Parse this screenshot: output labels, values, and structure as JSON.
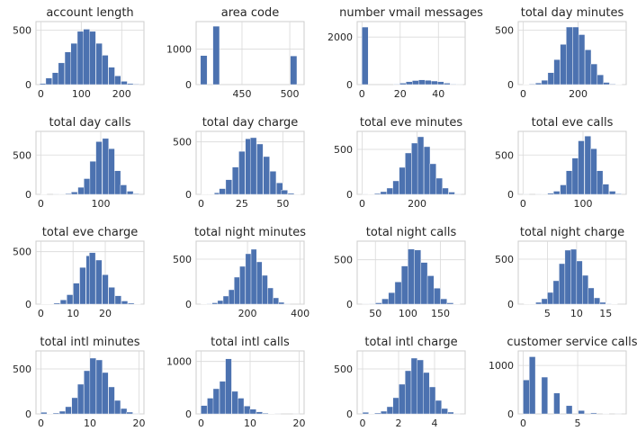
{
  "figure": {
    "bar_color": "#4c72b0",
    "grid": true,
    "layout": "4x4 grid of histograms"
  },
  "chart_data": [
    {
      "type": "bar",
      "title": "account length",
      "x": [
        5,
        20,
        36,
        51,
        67,
        82,
        98,
        113,
        128,
        144,
        159,
        175,
        190,
        206,
        221,
        236
      ],
      "values": [
        10,
        60,
        110,
        200,
        300,
        380,
        490,
        510,
        490,
        380,
        270,
        160,
        80,
        30,
        10,
        5
      ],
      "bin_width": 15.4,
      "xlim": [
        -12,
        255
      ],
      "ylim": [
        0,
        580
      ],
      "xticks": [
        0,
        100,
        200
      ],
      "yticks": [
        0,
        500
      ]
    },
    {
      "type": "bar",
      "title": "area code",
      "x": [
        410,
        423,
        437,
        450,
        463,
        477,
        490,
        504
      ],
      "values": [
        820,
        1650,
        0,
        0,
        0,
        0,
        0,
        810
      ],
      "bin_width": 6.9,
      "xlim": [
        402,
        515
      ],
      "ylim": [
        0,
        1780
      ],
      "xticks": [
        450,
        500
      ],
      "yticks": [
        0,
        1000
      ]
    },
    {
      "type": "bar",
      "title": "number vmail messages",
      "x": [
        1.6,
        4.9,
        8.2,
        11.5,
        14.8,
        18.1,
        21.4,
        24.7,
        28.0,
        31.3,
        34.6,
        37.9,
        41.2,
        44.5,
        47.8,
        51.1
      ],
      "values": [
        2420,
        0,
        0,
        0,
        0,
        20,
        60,
        120,
        170,
        200,
        180,
        150,
        120,
        60,
        20,
        5
      ],
      "bin_width": 3.3,
      "xlim": [
        -2.5,
        54
      ],
      "ylim": [
        0,
        2650
      ],
      "xticks": [
        0,
        20,
        40
      ],
      "yticks": [
        0,
        2000
      ]
    },
    {
      "type": "bar",
      "title": "total day minutes",
      "x": [
        11,
        33,
        56,
        78,
        101,
        123,
        146,
        168,
        191,
        213,
        236,
        258,
        281,
        303,
        326,
        348
      ],
      "values": [
        3,
        5,
        15,
        40,
        110,
        230,
        370,
        530,
        530,
        460,
        320,
        190,
        90,
        20,
        5,
        2
      ],
      "bin_width": 22.5,
      "xlim": [
        -18,
        375
      ],
      "ylim": [
        0,
        580
      ],
      "xticks": [
        0,
        200
      ],
      "yticks": [
        0,
        500
      ]
    },
    {
      "type": "bar",
      "title": "total day calls",
      "x": [
        5,
        15,
        26,
        36,
        46,
        56,
        67,
        77,
        87,
        97,
        108,
        118,
        128,
        138,
        149,
        159
      ],
      "values": [
        3,
        0,
        2,
        5,
        10,
        30,
        90,
        200,
        420,
        670,
        710,
        580,
        300,
        120,
        40,
        8
      ],
      "bin_width": 10.25,
      "xlim": [
        -8,
        172
      ],
      "ylim": [
        0,
        800
      ],
      "xticks": [
        0,
        100
      ],
      "yticks": [
        0,
        500
      ]
    },
    {
      "type": "bar",
      "title": "total day charge",
      "x": [
        2,
        6,
        10,
        13,
        17,
        21,
        25,
        29,
        32,
        36,
        40,
        44,
        48,
        51,
        55,
        59
      ],
      "values": [
        2,
        3,
        15,
        55,
        140,
        260,
        410,
        530,
        540,
        480,
        360,
        220,
        110,
        40,
        10,
        2
      ],
      "bin_width": 3.8,
      "xlim": [
        -3,
        63
      ],
      "ylim": [
        0,
        600
      ],
      "xticks": [
        0,
        25,
        50
      ],
      "yticks": [
        0,
        500
      ]
    },
    {
      "type": "bar",
      "title": "total eve minutes",
      "x": [
        11,
        33,
        56,
        78,
        101,
        123,
        146,
        168,
        191,
        213,
        236,
        258,
        281,
        303,
        326,
        348
      ],
      "values": [
        2,
        3,
        10,
        30,
        70,
        150,
        300,
        460,
        570,
        640,
        530,
        340,
        180,
        70,
        25,
        5
      ],
      "bin_width": 22.5,
      "xlim": [
        -18,
        375
      ],
      "ylim": [
        0,
        700
      ],
      "xticks": [
        0,
        200
      ],
      "yticks": [
        0,
        500
      ]
    },
    {
      "type": "bar",
      "title": "total eve calls",
      "x": [
        5,
        15,
        26,
        36,
        46,
        56,
        67,
        77,
        87,
        97,
        108,
        118,
        128,
        138,
        149,
        159
      ],
      "values": [
        2,
        0,
        2,
        5,
        15,
        40,
        120,
        300,
        460,
        680,
        740,
        580,
        300,
        130,
        40,
        8
      ],
      "bin_width": 10.25,
      "xlim": [
        -8,
        172
      ],
      "ylim": [
        0,
        800
      ],
      "xticks": [
        0,
        100
      ],
      "yticks": [
        0,
        500
      ]
    },
    {
      "type": "bar",
      "title": "total eve charge",
      "x": [
        1,
        3,
        5,
        7,
        9,
        11,
        13,
        15,
        16,
        18,
        20,
        22,
        24,
        26,
        28,
        30
      ],
      "values": [
        2,
        3,
        10,
        40,
        90,
        200,
        350,
        460,
        490,
        420,
        280,
        160,
        80,
        30,
        10,
        2
      ],
      "bin_width": 1.9,
      "xlim": [
        -1.5,
        32
      ],
      "ylim": [
        0,
        600
      ],
      "xticks": [
        0,
        10,
        20
      ],
      "yticks": [
        0,
        500
      ]
    },
    {
      "type": "bar",
      "title": "total night minutes",
      "x": [
        34,
        55,
        76,
        97,
        118,
        139,
        160,
        181,
        203,
        224,
        245,
        266,
        287,
        308,
        329,
        350
      ],
      "values": [
        2,
        5,
        15,
        40,
        90,
        160,
        300,
        420,
        560,
        610,
        470,
        320,
        180,
        70,
        20,
        5
      ],
      "bin_width": 21,
      "xlim": [
        5,
        415
      ],
      "ylim": [
        0,
        700
      ],
      "xticks": [
        200,
        400
      ],
      "yticks": [
        0,
        500
      ]
    },
    {
      "type": "bar",
      "title": "total night calls",
      "x": [
        35,
        45,
        55,
        65,
        75,
        85,
        95,
        105,
        115,
        125,
        135,
        145,
        155,
        165,
        175
      ],
      "values": [
        2,
        5,
        15,
        60,
        130,
        250,
        430,
        620,
        610,
        470,
        320,
        180,
        60,
        15,
        3
      ],
      "bin_width": 10,
      "xlim": [
        22,
        188
      ],
      "ylim": [
        0,
        710
      ],
      "xticks": [
        50,
        100,
        150
      ],
      "yticks": [
        0,
        500
      ]
    },
    {
      "type": "bar",
      "title": "total night charge",
      "x": [
        1.5,
        2.5,
        3.5,
        4.5,
        5.5,
        6.5,
        7.5,
        8.5,
        9.5,
        10.5,
        11.5,
        12.5,
        13.5,
        14.5,
        15.5,
        16.5
      ],
      "values": [
        2,
        3,
        20,
        60,
        130,
        260,
        450,
        600,
        610,
        480,
        320,
        180,
        70,
        20,
        5,
        2
      ],
      "bin_width": 1,
      "xlim": [
        0,
        18.5
      ],
      "ylim": [
        0,
        700
      ],
      "xticks": [
        5,
        10,
        15
      ],
      "yticks": [
        0,
        500
      ]
    },
    {
      "type": "bar",
      "title": "total intl minutes",
      "x": [
        0.6,
        1.9,
        3.1,
        4.4,
        5.6,
        6.9,
        8.1,
        9.4,
        10.6,
        11.9,
        13.1,
        14.4,
        15.6,
        16.9,
        18.1,
        19.4
      ],
      "values": [
        18,
        3,
        10,
        30,
        80,
        180,
        330,
        480,
        620,
        600,
        460,
        300,
        150,
        60,
        20,
        5
      ],
      "bin_width": 1.25,
      "xlim": [
        -1,
        21
      ],
      "ylim": [
        0,
        700
      ],
      "xticks": [
        0,
        10,
        20
      ],
      "yticks": [
        0,
        500
      ]
    },
    {
      "type": "bar",
      "title": "total intl calls",
      "x": [
        0.6,
        1.9,
        3.1,
        4.4,
        5.6,
        6.9,
        8.1,
        9.4,
        10.6,
        11.9,
        13.1,
        14.4,
        15.6,
        16.9,
        18.1,
        19.4
      ],
      "values": [
        160,
        300,
        480,
        620,
        1050,
        430,
        300,
        150,
        90,
        40,
        15,
        5,
        2,
        0,
        0,
        1
      ],
      "bin_width": 1.25,
      "xlim": [
        -1,
        21
      ],
      "ylim": [
        0,
        1200
      ],
      "xticks": [
        0,
        10,
        20
      ],
      "yticks": [
        0,
        1000
      ]
    },
    {
      "type": "bar",
      "title": "total intl charge",
      "x": [
        0.17,
        0.51,
        0.84,
        1.18,
        1.52,
        1.86,
        2.19,
        2.53,
        2.87,
        3.21,
        3.54,
        3.88,
        4.22,
        4.56,
        4.89,
        5.23
      ],
      "values": [
        18,
        3,
        10,
        30,
        80,
        180,
        330,
        480,
        620,
        600,
        460,
        300,
        150,
        60,
        20,
        5
      ],
      "bin_width": 0.34,
      "xlim": [
        -0.3,
        5.7
      ],
      "ylim": [
        0,
        700
      ],
      "xticks": [
        0,
        2,
        4
      ],
      "yticks": [
        0,
        500
      ]
    },
    {
      "type": "bar",
      "title": "customer service calls",
      "x": [
        0.28,
        0.84,
        1.41,
        1.97,
        2.53,
        3.09,
        3.66,
        4.22,
        4.78,
        5.34,
        5.91,
        6.47,
        7.03,
        7.59,
        8.16,
        8.72
      ],
      "values": [
        700,
        1180,
        0,
        760,
        0,
        430,
        0,
        170,
        0,
        70,
        0,
        20,
        0,
        8,
        0,
        2
      ],
      "bin_width": 0.5625,
      "xlim": [
        -0.45,
        9.45
      ],
      "ylim": [
        0,
        1300
      ],
      "xticks": [
        0,
        5
      ],
      "yticks": [
        0,
        1000
      ]
    }
  ]
}
